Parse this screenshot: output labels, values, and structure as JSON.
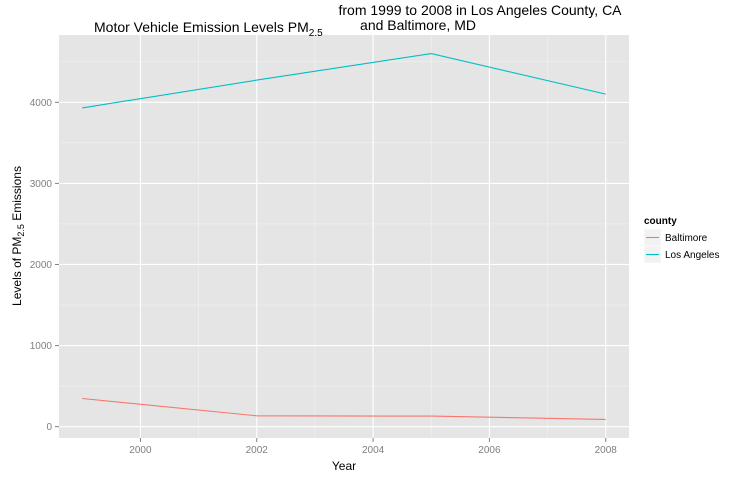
{
  "chart_data": {
    "type": "line",
    "title": {
      "part1": "Motor Vehicle Emission Levels PM",
      "part1_subscript": "2.5",
      "part2_line1": "from 1999 to 2008 in Los Angeles County, CA",
      "part2_line2": "and Baltimore, MD"
    },
    "xlabel": "Year",
    "ylabel": {
      "prefix": "Levels of PM",
      "subscript": "2.5",
      "suffix": " Emissions"
    },
    "x": [
      1999,
      2002,
      2005,
      2008
    ],
    "xlim": [
      1998.6,
      2008.4
    ],
    "ylim": [
      -140,
      4830
    ],
    "x_ticks": [
      2000,
      2002,
      2004,
      2006,
      2008
    ],
    "x_minor_ticks": [
      2001,
      2003,
      2005,
      2007
    ],
    "y_ticks": [
      0,
      1000,
      2000,
      3000,
      4000
    ],
    "y_minor_ticks": [
      500,
      1500,
      2500,
      3500,
      4500
    ],
    "grid": true,
    "legend": {
      "title": "county",
      "placement": "right"
    },
    "series": [
      {
        "name": "Baltimore",
        "color": "#F8766D",
        "values": [
          347,
          134,
          130,
          89
        ]
      },
      {
        "name": "Los Angeles",
        "color": "#00BFC4",
        "values": [
          3931,
          4274,
          4601,
          4101
        ]
      }
    ]
  },
  "colors": {
    "panel_background": "#E5E5E5",
    "grid_major": "#FFFFFF",
    "grid_minor": "#F2F2F2",
    "tick_text": "#7F7F7F"
  }
}
